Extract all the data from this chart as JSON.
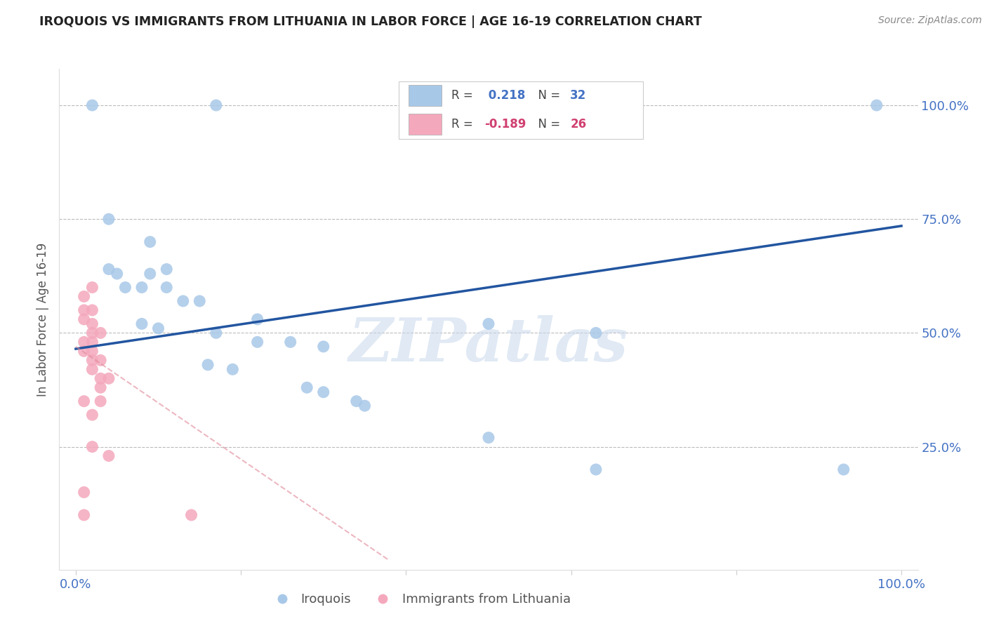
{
  "title": "IROQUOIS VS IMMIGRANTS FROM LITHUANIA IN LABOR FORCE | AGE 16-19 CORRELATION CHART",
  "source_text": "Source: ZipAtlas.com",
  "ylabel": "In Labor Force | Age 16-19",
  "xlim": [
    -0.02,
    1.02
  ],
  "ylim": [
    -0.02,
    1.08
  ],
  "ytick_labels": [
    "25.0%",
    "50.0%",
    "75.0%",
    "100.0%"
  ],
  "ytick_positions": [
    0.25,
    0.5,
    0.75,
    1.0
  ],
  "watermark": "ZIPatlas",
  "legend_r1": "R =  0.218   N = 32",
  "legend_r2": "R = -0.189   N = 26",
  "blue_color": "#A8C8E8",
  "pink_color": "#F4A8BC",
  "blue_line_color": "#2255A0",
  "pink_line_color": "#E08898",
  "background_color": "#FFFFFF",
  "grid_color": "#BBBBBB",
  "title_color": "#222222",
  "axis_label_color": "#4472C4",
  "r_value_blue": "#4472C4",
  "r_value_pink": "#D04070",
  "blue_scatter": [
    [
      0.02,
      1.0
    ],
    [
      0.17,
      1.0
    ],
    [
      0.04,
      0.75
    ],
    [
      0.09,
      0.7
    ],
    [
      0.04,
      0.64
    ],
    [
      0.05,
      0.63
    ],
    [
      0.09,
      0.63
    ],
    [
      0.11,
      0.64
    ],
    [
      0.06,
      0.6
    ],
    [
      0.08,
      0.6
    ],
    [
      0.11,
      0.6
    ],
    [
      0.13,
      0.57
    ],
    [
      0.15,
      0.57
    ],
    [
      0.22,
      0.53
    ],
    [
      0.08,
      0.52
    ],
    [
      0.1,
      0.51
    ],
    [
      0.17,
      0.5
    ],
    [
      0.22,
      0.48
    ],
    [
      0.26,
      0.48
    ],
    [
      0.3,
      0.47
    ],
    [
      0.16,
      0.43
    ],
    [
      0.19,
      0.42
    ],
    [
      0.28,
      0.38
    ],
    [
      0.3,
      0.37
    ],
    [
      0.34,
      0.35
    ],
    [
      0.35,
      0.34
    ],
    [
      0.5,
      0.52
    ],
    [
      0.5,
      0.27
    ],
    [
      0.63,
      0.5
    ],
    [
      0.63,
      0.2
    ],
    [
      0.93,
      0.2
    ],
    [
      0.97,
      1.0
    ]
  ],
  "pink_scatter": [
    [
      0.01,
      0.58
    ],
    [
      0.01,
      0.55
    ],
    [
      0.02,
      0.55
    ],
    [
      0.01,
      0.53
    ],
    [
      0.02,
      0.52
    ],
    [
      0.02,
      0.5
    ],
    [
      0.03,
      0.5
    ],
    [
      0.01,
      0.48
    ],
    [
      0.02,
      0.48
    ],
    [
      0.01,
      0.46
    ],
    [
      0.02,
      0.46
    ],
    [
      0.02,
      0.44
    ],
    [
      0.03,
      0.44
    ],
    [
      0.02,
      0.42
    ],
    [
      0.03,
      0.4
    ],
    [
      0.04,
      0.4
    ],
    [
      0.03,
      0.38
    ],
    [
      0.01,
      0.35
    ],
    [
      0.03,
      0.35
    ],
    [
      0.02,
      0.32
    ],
    [
      0.02,
      0.25
    ],
    [
      0.04,
      0.23
    ],
    [
      0.01,
      0.15
    ],
    [
      0.01,
      0.1
    ],
    [
      0.14,
      0.1
    ],
    [
      0.02,
      0.6
    ]
  ],
  "blue_trendline_x": [
    0.0,
    1.0
  ],
  "blue_trendline_y": [
    0.465,
    0.735
  ],
  "pink_trendline_x": [
    0.0,
    0.38
  ],
  "pink_trendline_y": [
    0.47,
    0.0
  ]
}
